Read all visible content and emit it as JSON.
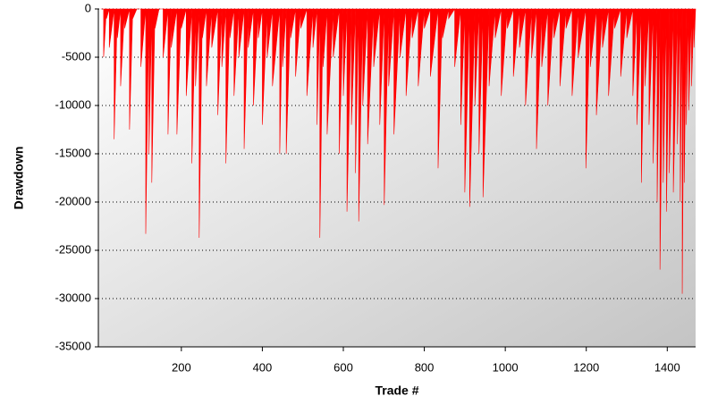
{
  "chart_data": {
    "type": "area",
    "x_label": "Trade #",
    "y_label": "Drawdown",
    "color": "#ff0000",
    "grid": true,
    "xlim": [
      -5,
      1470
    ],
    "ylim": [
      -35000,
      0
    ],
    "xticks": [
      200,
      400,
      600,
      800,
      1000,
      1200,
      1400
    ],
    "yticks": [
      0,
      -5000,
      -10000,
      -15000,
      -20000,
      -25000,
      -30000,
      -35000
    ],
    "x": [
      1,
      8,
      15,
      22,
      34,
      42,
      50,
      60,
      72,
      80,
      90,
      100,
      112,
      120,
      127,
      135,
      145,
      155,
      167,
      175,
      189,
      200,
      212,
      226,
      235,
      244,
      252,
      262,
      275,
      290,
      300,
      310,
      320,
      330,
      342,
      355,
      365,
      378,
      390,
      400,
      412,
      425,
      443,
      450,
      459,
      470,
      482,
      495,
      510,
      525,
      535,
      542,
      550,
      560,
      575,
      590,
      600,
      609,
      620,
      630,
      638,
      648,
      660,
      675,
      690,
      701,
      712,
      725,
      740,
      755,
      770,
      785,
      800,
      815,
      834,
      845,
      860,
      875,
      890,
      900,
      912,
      925,
      935,
      945,
      960,
      975,
      990,
      1005,
      1020,
      1035,
      1050,
      1065,
      1077,
      1090,
      1105,
      1120,
      1135,
      1150,
      1165,
      1180,
      1199,
      1210,
      1225,
      1240,
      1255,
      1270,
      1285,
      1300,
      1315,
      1325,
      1336,
      1345,
      1355,
      1365,
      1375,
      1382,
      1390,
      1398,
      1405,
      1415,
      1425,
      1432,
      1437,
      1442,
      1447,
      1453,
      1460,
      1466,
      1470
    ],
    "values": [
      0,
      -5000,
      -1000,
      -4000,
      -13500,
      -3000,
      -8000,
      -2000,
      -12500,
      -1000,
      0,
      -6000,
      -23300,
      -15000,
      -18000,
      -2000,
      0,
      -5000,
      -13000,
      -4000,
      -13000,
      -2000,
      -9000,
      -16000,
      -8000,
      -23700,
      -3000,
      -8000,
      -4000,
      -11000,
      -6000,
      -16000,
      -3000,
      -9000,
      -5000,
      -14500,
      -4000,
      -10000,
      -3000,
      -12000,
      -5000,
      -8000,
      -15000,
      -6000,
      -15000,
      -3000,
      -7000,
      -2000,
      -9000,
      -4000,
      -12000,
      -23700,
      -6000,
      -13000,
      -5000,
      -15000,
      -9000,
      -21000,
      -12000,
      -17000,
      -22000,
      -10000,
      -14000,
      -6000,
      -12000,
      -20300,
      -8000,
      -13000,
      -5000,
      -9000,
      -3000,
      -8000,
      -2000,
      -7000,
      -16500,
      -3000,
      -1000,
      -6000,
      -12000,
      -19000,
      -20500,
      -10000,
      -15000,
      -19500,
      -8000,
      -3000,
      -9000,
      -2000,
      -7000,
      -4000,
      -10000,
      -5000,
      -14500,
      -6000,
      -10000,
      -3000,
      -8000,
      -2000,
      -9000,
      -5000,
      -16500,
      -6000,
      -11000,
      -4000,
      -9000,
      -2000,
      -7000,
      -3000,
      -9000,
      -12000,
      -18000,
      -8000,
      -12000,
      -16000,
      -20000,
      -27000,
      -18000,
      -21000,
      -17000,
      -19000,
      -14000,
      -20000,
      -29500,
      -18000,
      -12000,
      -10500,
      -8000,
      -4000,
      0
    ]
  }
}
